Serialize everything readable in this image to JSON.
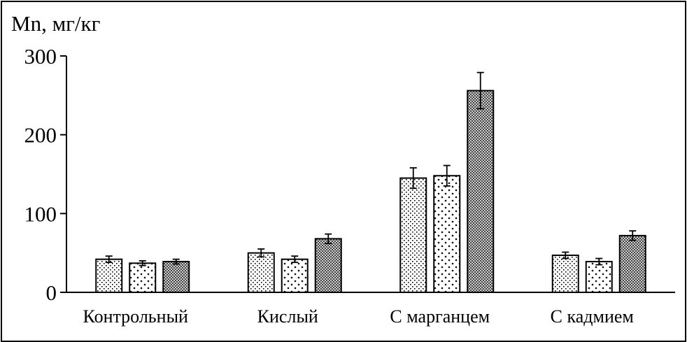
{
  "chart_data": {
    "type": "bar",
    "title": "",
    "ylabel": "Mn, мг/кг",
    "xlabel": "",
    "ylim": [
      0,
      300
    ],
    "yticks": [
      0,
      100,
      200,
      300
    ],
    "categories": [
      "Контрольный",
      "Кислый",
      "С марганцем",
      "С кадмием"
    ],
    "series": [
      {
        "values": [
          42,
          50,
          145,
          47
        ],
        "errors": [
          4,
          5,
          13,
          4
        ],
        "pattern": "dots-sparse"
      },
      {
        "values": [
          37,
          42,
          148,
          39
        ],
        "errors": [
          3,
          4,
          13,
          4
        ],
        "pattern": "checker-light"
      },
      {
        "values": [
          39,
          68,
          256,
          72
        ],
        "errors": [
          3,
          6,
          23,
          6
        ],
        "pattern": "crosshatch-dark"
      }
    ],
    "grid": false,
    "legend": "none"
  }
}
